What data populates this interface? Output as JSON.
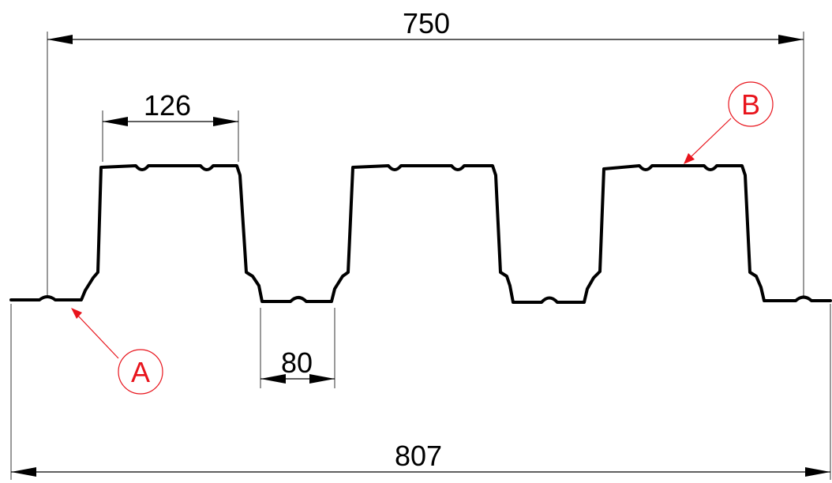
{
  "dimensions": {
    "cover_width": "750",
    "rib_top_width": "126",
    "pan_width": "80",
    "overall_width": "807"
  },
  "callouts": {
    "a": "A",
    "b": "B"
  },
  "colors": {
    "profile": "#000000",
    "dimension": "#000000",
    "callout": "#e8141c"
  }
}
